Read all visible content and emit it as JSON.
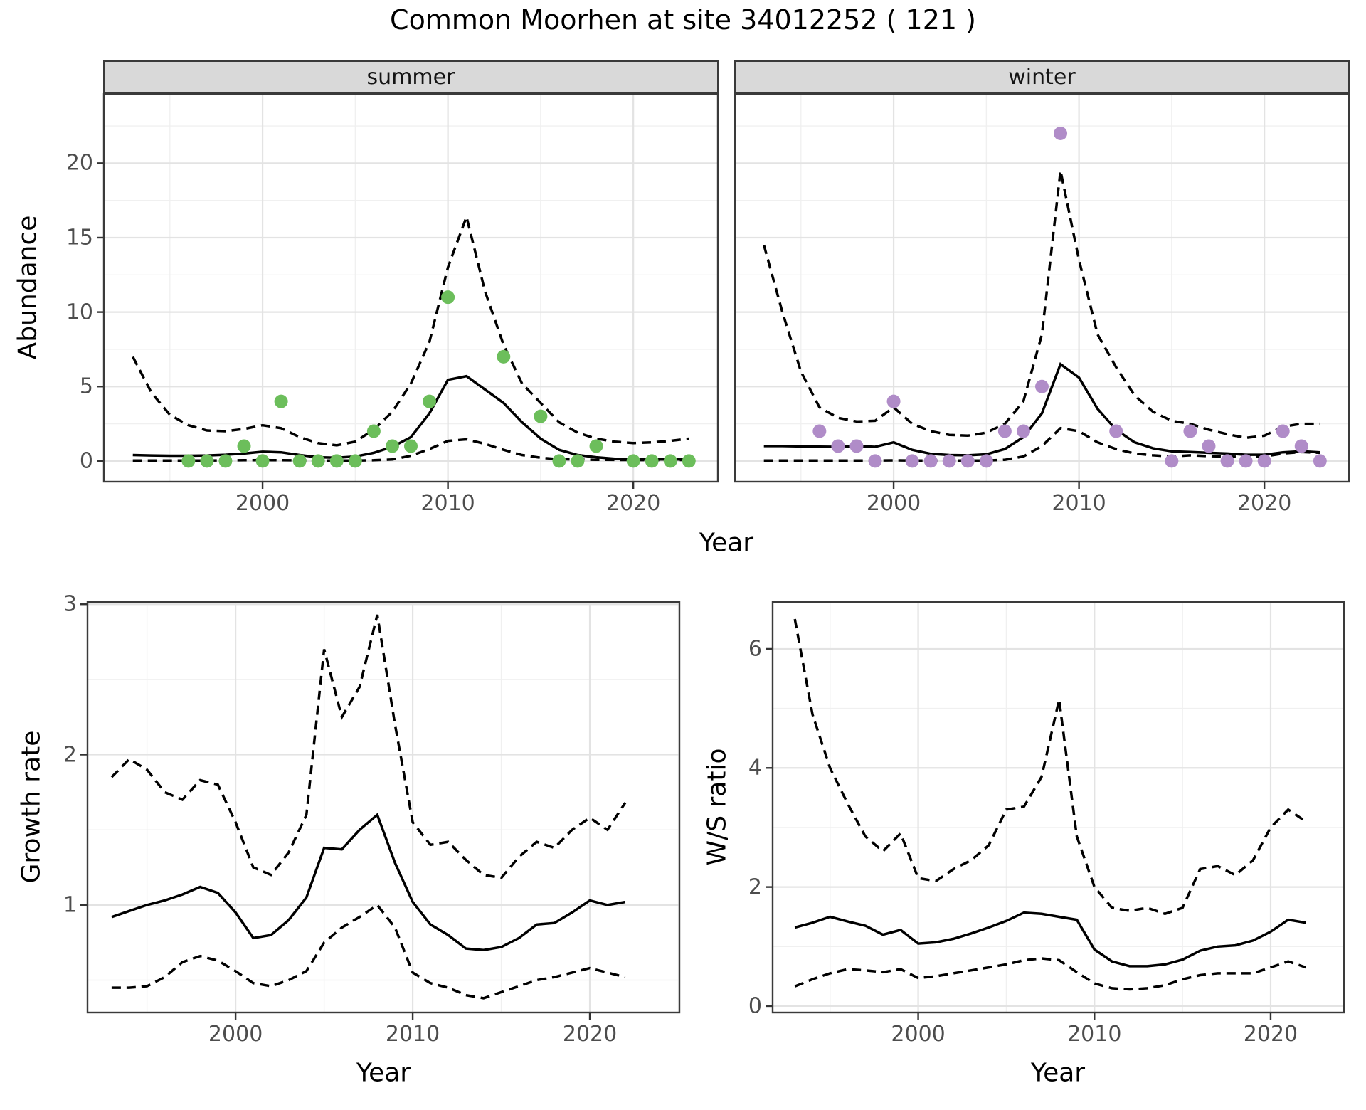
{
  "title": "Common Moorhen at site 34012252 ( 121 )",
  "facets": {
    "summer": "summer",
    "winter": "winter"
  },
  "axis_titles": {
    "abundance": "Abundance",
    "year_top": "Year",
    "growth": "Growth rate",
    "year_growth": "Year",
    "ws": "W/S ratio",
    "year_ws": "Year"
  },
  "colors": {
    "summer_points": "#6CBE5B",
    "winter_points": "#B08CC8",
    "line": "#000000",
    "strip_bg": "#D9D9D9",
    "grid_major": "#E3E3E3",
    "grid_minor": "#F0F0F0",
    "tick_mark": "#333333",
    "tick_text": "#4D4D4D",
    "panel_border": "#3A3A3A"
  },
  "chart_data": [
    {
      "id": "abundance-summer",
      "type": "line",
      "facet": "summer",
      "xlabel": "Year",
      "ylabel": "Abundance",
      "xlim": [
        1991.4,
        2024.6
      ],
      "ylim": [
        -1.44,
        24.7
      ],
      "x_ticks": [
        2000,
        2010,
        2020
      ],
      "x_minor": [
        1995,
        2005,
        2015
      ],
      "y_ticks": [
        0,
        5,
        10,
        15,
        20
      ],
      "y_minor": [
        2.5,
        7.5,
        12.5,
        17.5,
        22.5
      ],
      "series": [
        {
          "name": "fit-mean",
          "style": "solid",
          "x": [
            1993,
            1994,
            1995,
            1996,
            1997,
            1998,
            1999,
            2000,
            2001,
            2002,
            2003,
            2004,
            2005,
            2006,
            2007,
            2008,
            2009,
            2010,
            2011,
            2012,
            2013,
            2014,
            2015,
            2016,
            2017,
            2018,
            2019,
            2020,
            2021,
            2022,
            2023
          ],
          "y": [
            0.4,
            0.37,
            0.35,
            0.35,
            0.37,
            0.42,
            0.5,
            0.62,
            0.58,
            0.4,
            0.25,
            0.22,
            0.3,
            0.55,
            0.95,
            1.6,
            3.2,
            5.45,
            5.7,
            4.8,
            3.9,
            2.6,
            1.5,
            0.75,
            0.4,
            0.25,
            0.15,
            0.12,
            0.1,
            0.1,
            0.1
          ]
        },
        {
          "name": "ci-upper",
          "style": "dashed",
          "x": [
            1993,
            1994,
            1995,
            1996,
            1997,
            1998,
            1999,
            2000,
            2001,
            2002,
            2003,
            2004,
            2005,
            2006,
            2007,
            2008,
            2009,
            2010,
            2011,
            2012,
            2013,
            2014,
            2015,
            2016,
            2017,
            2018,
            2019,
            2020,
            2021,
            2022,
            2023
          ],
          "y": [
            7.0,
            4.6,
            3.1,
            2.4,
            2.05,
            2.0,
            2.15,
            2.4,
            2.2,
            1.6,
            1.2,
            1.05,
            1.3,
            2.1,
            3.3,
            5.2,
            8.0,
            13.0,
            16.4,
            11.4,
            7.8,
            5.2,
            3.9,
            2.6,
            1.9,
            1.5,
            1.3,
            1.2,
            1.25,
            1.35,
            1.5
          ]
        },
        {
          "name": "ci-lower",
          "style": "dashed",
          "x": [
            1993,
            1994,
            1995,
            1996,
            1997,
            1998,
            1999,
            2000,
            2001,
            2002,
            2003,
            2004,
            2005,
            2006,
            2007,
            2008,
            2009,
            2010,
            2011,
            2012,
            2013,
            2014,
            2015,
            2016,
            2017,
            2018,
            2019,
            2020,
            2021,
            2022,
            2023
          ],
          "y": [
            0.03,
            0.03,
            0.03,
            0.03,
            0.03,
            0.04,
            0.05,
            0.06,
            0.05,
            0.04,
            0.03,
            0.03,
            0.03,
            0.05,
            0.1,
            0.35,
            0.8,
            1.35,
            1.45,
            1.15,
            0.75,
            0.4,
            0.22,
            0.12,
            0.1,
            0.08,
            0.07,
            0.06,
            0.06,
            0.06,
            0.07
          ]
        }
      ],
      "points": {
        "name": "observed-abundance-summer",
        "color": "#6CBE5B",
        "x": [
          1996,
          1997,
          1998,
          1999,
          2000,
          2001,
          2002,
          2003,
          2004,
          2005,
          2006,
          2007,
          2008,
          2009,
          2010,
          2013,
          2015,
          2016,
          2017,
          2018,
          2020,
          2021,
          2022,
          2023
        ],
        "y": [
          0,
          0,
          0,
          1,
          0,
          4,
          0,
          0,
          0,
          0,
          2,
          1,
          1,
          4,
          11,
          7,
          3,
          0,
          0,
          1,
          0,
          0,
          0,
          0
        ]
      }
    },
    {
      "id": "abundance-winter",
      "type": "line",
      "facet": "winter",
      "xlabel": "Year",
      "ylabel": "Abundance",
      "xlim": [
        1991.4,
        2024.6
      ],
      "ylim": [
        -1.44,
        24.7
      ],
      "x_ticks": [
        2000,
        2010,
        2020
      ],
      "x_minor": [
        1995,
        2005,
        2015
      ],
      "y_ticks": [
        0,
        5,
        10,
        15,
        20
      ],
      "y_minor": [
        2.5,
        7.5,
        12.5,
        17.5,
        22.5
      ],
      "series": [
        {
          "name": "fit-mean",
          "style": "solid",
          "x": [
            1993,
            1994,
            1995,
            1996,
            1997,
            1998,
            1999,
            2000,
            2001,
            2002,
            2003,
            2004,
            2005,
            2006,
            2007,
            2008,
            2009,
            2010,
            2011,
            2012,
            2013,
            2014,
            2015,
            2016,
            2017,
            2018,
            2019,
            2020,
            2021,
            2022,
            2023
          ],
          "y": [
            1.0,
            1.0,
            0.98,
            0.96,
            0.95,
            1.0,
            0.95,
            1.25,
            0.75,
            0.48,
            0.4,
            0.38,
            0.45,
            0.8,
            1.6,
            3.2,
            6.5,
            5.6,
            3.5,
            2.1,
            1.25,
            0.85,
            0.65,
            0.6,
            0.55,
            0.5,
            0.42,
            0.42,
            0.58,
            0.65,
            0.58
          ]
        },
        {
          "name": "ci-upper",
          "style": "dashed",
          "x": [
            1993,
            1994,
            1995,
            1996,
            1997,
            1998,
            1999,
            2000,
            2001,
            2002,
            2003,
            2004,
            2005,
            2006,
            2007,
            2008,
            2009,
            2010,
            2011,
            2012,
            2013,
            2014,
            2015,
            2016,
            2017,
            2018,
            2019,
            2020,
            2021,
            2022,
            2023
          ],
          "y": [
            14.5,
            10.0,
            6.0,
            3.6,
            2.9,
            2.65,
            2.7,
            3.6,
            2.5,
            2.0,
            1.75,
            1.7,
            1.9,
            2.5,
            4.0,
            8.5,
            19.5,
            13.5,
            8.5,
            6.3,
            4.4,
            3.3,
            2.7,
            2.5,
            2.1,
            1.8,
            1.55,
            1.7,
            2.3,
            2.5,
            2.5
          ]
        },
        {
          "name": "ci-lower",
          "style": "dashed",
          "x": [
            1993,
            1994,
            1995,
            1996,
            1997,
            1998,
            1999,
            2000,
            2001,
            2002,
            2003,
            2004,
            2005,
            2006,
            2007,
            2008,
            2009,
            2010,
            2011,
            2012,
            2013,
            2014,
            2015,
            2016,
            2017,
            2018,
            2019,
            2020,
            2021,
            2022,
            2023
          ],
          "y": [
            0.03,
            0.03,
            0.03,
            0.03,
            0.03,
            0.03,
            0.03,
            0.04,
            0.03,
            0.03,
            0.03,
            0.03,
            0.03,
            0.08,
            0.3,
            1.0,
            2.2,
            2.0,
            1.25,
            0.8,
            0.5,
            0.38,
            0.3,
            0.38,
            0.33,
            0.3,
            0.27,
            0.3,
            0.5,
            0.6,
            0.55
          ]
        }
      ],
      "points": {
        "name": "observed-abundance-winter",
        "color": "#B08CC8",
        "x": [
          1996,
          1997,
          1998,
          1999,
          2000,
          2001,
          2002,
          2003,
          2004,
          2005,
          2006,
          2007,
          2008,
          2009,
          2012,
          2015,
          2016,
          2017,
          2018,
          2019,
          2020,
          2021,
          2022,
          2023
        ],
        "y": [
          2,
          1,
          1,
          0,
          4,
          0,
          0,
          0,
          0,
          0,
          2,
          2,
          5,
          22,
          2,
          0,
          2,
          1,
          0,
          0,
          0,
          2,
          1,
          0
        ]
      }
    },
    {
      "id": "growth-rate",
      "type": "line",
      "facet": null,
      "xlabel": "Year",
      "ylabel": "Growth rate",
      "xlim": [
        1991.6,
        2025.1
      ],
      "ylim": [
        0.28,
        3.02
      ],
      "x_ticks": [
        2000,
        2010,
        2020
      ],
      "x_minor": [
        1995,
        2005,
        2015,
        2025
      ],
      "y_ticks": [
        1,
        2,
        3
      ],
      "y_minor": [
        0.5,
        1.5,
        2.5
      ],
      "series": [
        {
          "name": "fit-mean",
          "style": "solid",
          "x": [
            1993,
            1994,
            1995,
            1996,
            1997,
            1998,
            1999,
            2000,
            2001,
            2002,
            2003,
            2004,
            2005,
            2006,
            2007,
            2008,
            2009,
            2010,
            2011,
            2012,
            2013,
            2014,
            2015,
            2016,
            2017,
            2018,
            2019,
            2020,
            2021,
            2022
          ],
          "y": [
            0.92,
            0.96,
            1.0,
            1.03,
            1.07,
            1.12,
            1.08,
            0.95,
            0.78,
            0.8,
            0.9,
            1.05,
            1.38,
            1.37,
            1.5,
            1.6,
            1.28,
            1.02,
            0.87,
            0.8,
            0.71,
            0.7,
            0.72,
            0.78,
            0.87,
            0.88,
            0.95,
            1.03,
            1.0,
            1.02
          ]
        },
        {
          "name": "ci-upper",
          "style": "dashed",
          "x": [
            1993,
            1994,
            1995,
            1996,
            1997,
            1998,
            1999,
            2000,
            2001,
            2002,
            2003,
            2004,
            2005,
            2006,
            2007,
            2008,
            2009,
            2010,
            2011,
            2012,
            2013,
            2014,
            2015,
            2016,
            2017,
            2018,
            2019,
            2020,
            2021,
            2022
          ],
          "y": [
            1.85,
            1.97,
            1.9,
            1.75,
            1.7,
            1.83,
            1.8,
            1.55,
            1.25,
            1.2,
            1.35,
            1.6,
            2.7,
            2.25,
            2.45,
            2.93,
            2.2,
            1.55,
            1.4,
            1.42,
            1.3,
            1.2,
            1.18,
            1.32,
            1.42,
            1.38,
            1.5,
            1.58,
            1.5,
            1.68
          ]
        },
        {
          "name": "ci-lower",
          "style": "dashed",
          "x": [
            1993,
            1994,
            1995,
            1996,
            1997,
            1998,
            1999,
            2000,
            2001,
            2002,
            2003,
            2004,
            2005,
            2006,
            2007,
            2008,
            2009,
            2010,
            2011,
            2012,
            2013,
            2014,
            2015,
            2016,
            2017,
            2018,
            2019,
            2020,
            2021,
            2022
          ],
          "y": [
            0.45,
            0.45,
            0.46,
            0.52,
            0.62,
            0.66,
            0.63,
            0.56,
            0.48,
            0.46,
            0.5,
            0.56,
            0.75,
            0.85,
            0.92,
            1.0,
            0.85,
            0.55,
            0.48,
            0.45,
            0.4,
            0.38,
            0.42,
            0.46,
            0.5,
            0.52,
            0.55,
            0.58,
            0.55,
            0.52
          ]
        }
      ],
      "points": null
    },
    {
      "id": "ws-ratio",
      "type": "line",
      "facet": null,
      "xlabel": "Year",
      "ylabel": "W/S ratio",
      "xlim": [
        1991.7,
        2024.2
      ],
      "ylim": [
        -0.12,
        6.8
      ],
      "x_ticks": [
        2000,
        2010,
        2020
      ],
      "x_minor": [
        1995,
        2005,
        2015
      ],
      "y_ticks": [
        0,
        2,
        4,
        6
      ],
      "y_minor": [
        1,
        3,
        5
      ],
      "series": [
        {
          "name": "fit-mean",
          "style": "solid",
          "x": [
            1993,
            1994,
            1995,
            1996,
            1997,
            1998,
            1999,
            2000,
            2001,
            2002,
            2003,
            2004,
            2005,
            2006,
            2007,
            2008,
            2009,
            2010,
            2011,
            2012,
            2013,
            2014,
            2015,
            2016,
            2017,
            2018,
            2019,
            2020,
            2021,
            2022
          ],
          "y": [
            1.32,
            1.4,
            1.5,
            1.42,
            1.35,
            1.2,
            1.28,
            1.05,
            1.07,
            1.13,
            1.22,
            1.32,
            1.43,
            1.57,
            1.55,
            1.5,
            1.45,
            0.95,
            0.75,
            0.67,
            0.67,
            0.7,
            0.78,
            0.93,
            1.0,
            1.02,
            1.1,
            1.25,
            1.45,
            1.4
          ]
        },
        {
          "name": "ci-upper",
          "style": "dashed",
          "x": [
            1993,
            1994,
            1995,
            1996,
            1997,
            1998,
            1999,
            2000,
            2001,
            2002,
            2003,
            2004,
            2005,
            2006,
            2007,
            2008,
            2009,
            2010,
            2011,
            2012,
            2013,
            2014,
            2015,
            2016,
            2017,
            2018,
            2019,
            2020,
            2021,
            2022
          ],
          "y": [
            6.5,
            4.9,
            4.0,
            3.4,
            2.85,
            2.6,
            2.9,
            2.15,
            2.1,
            2.3,
            2.45,
            2.7,
            3.3,
            3.35,
            3.85,
            5.15,
            2.85,
            2.0,
            1.65,
            1.6,
            1.65,
            1.55,
            1.65,
            2.3,
            2.35,
            2.2,
            2.45,
            3.0,
            3.3,
            3.1
          ]
        },
        {
          "name": "ci-lower",
          "style": "dashed",
          "x": [
            1993,
            1994,
            1995,
            1996,
            1997,
            1998,
            1999,
            2000,
            2001,
            2002,
            2003,
            2004,
            2005,
            2006,
            2007,
            2008,
            2009,
            2010,
            2011,
            2012,
            2013,
            2014,
            2015,
            2016,
            2017,
            2018,
            2019,
            2020,
            2021,
            2022
          ],
          "y": [
            0.33,
            0.45,
            0.55,
            0.62,
            0.6,
            0.57,
            0.62,
            0.47,
            0.5,
            0.55,
            0.6,
            0.65,
            0.7,
            0.77,
            0.8,
            0.77,
            0.57,
            0.38,
            0.3,
            0.28,
            0.3,
            0.35,
            0.45,
            0.52,
            0.55,
            0.55,
            0.55,
            0.65,
            0.75,
            0.65
          ]
        }
      ],
      "points": null
    }
  ]
}
